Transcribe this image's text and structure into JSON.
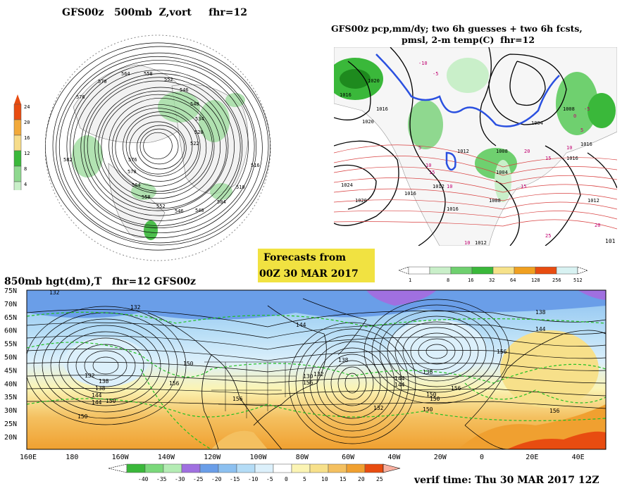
{
  "panel_vort": {
    "title": "GFS00z   500mb  Z,vort     fhr=12",
    "scale_labels": [
      "24",
      "20",
      "16",
      "12",
      "8",
      "4"
    ],
    "scale_colors": [
      "#e84c10",
      "#f2a93a",
      "#f6dc8a",
      "#3ab83a",
      "#8fd88f",
      "#c9efc9",
      "#ffffff"
    ],
    "contour_labels": [
      "576",
      "570",
      "564",
      "558",
      "552",
      "546",
      "540",
      "534",
      "528",
      "522",
      "516",
      "510",
      "504",
      "540",
      "546",
      "552",
      "558",
      "564",
      "570",
      "576",
      "582"
    ]
  },
  "panel_precip": {
    "title_line1": "GFS00z pcp,mm/dy; two 6h guesses + two 6h fcsts,",
    "title_line2": "pmsl, 2-m temp(C)  fhr=12",
    "isobar_labels": [
      "1020",
      "1016",
      "1020",
      "1024",
      "1020",
      "1016",
      "1012",
      "1008",
      "1004",
      "1008",
      "1012",
      "1016",
      "1012",
      "1016",
      "1008",
      "1004",
      "1016",
      "1012",
      "1016"
    ],
    "temp_labels": [
      "5",
      "10",
      "15",
      "10",
      "15",
      "20",
      "-5",
      "0",
      "5",
      "10",
      "15",
      "20",
      "25",
      "10",
      "-10",
      "-5"
    ],
    "corner_label": "101"
  },
  "forecast_box": {
    "line1": "Forecasts from",
    "line2": "00Z 30 MAR 2017",
    "bg_color": "#f1e241"
  },
  "precip_scale": {
    "labels": [
      "1",
      "8",
      "16",
      "32",
      "64",
      "128",
      "256",
      "512"
    ],
    "colors": [
      "#ffffff",
      "#c9efc9",
      "#6fd06f",
      "#3ab83a",
      "#f6e28a",
      "#f0a020",
      "#e84c10",
      "#d8f2f2"
    ]
  },
  "panel_850": {
    "title": "850mb hgt(dm),T   fhr=12 GFS00z",
    "y_ticks": [
      "75N",
      "70N",
      "65N",
      "60N",
      "55N",
      "50N",
      "45N",
      "40N",
      "35N",
      "30N",
      "25N",
      "20N"
    ],
    "x_ticks": [
      "160E",
      "180",
      "160W",
      "140W",
      "120W",
      "100W",
      "80W",
      "60W",
      "40W",
      "20W",
      "0",
      "20E",
      "40E"
    ],
    "height_labels": [
      "132",
      "132",
      "144",
      "138",
      "144",
      "150",
      "156",
      "138",
      "144",
      "150",
      "130",
      "132",
      "138",
      "144",
      "150",
      "156",
      "132",
      "138",
      "144",
      "150",
      "156",
      "150",
      "156",
      "132",
      "138",
      "144",
      "150",
      "156",
      "156"
    ]
  },
  "temp_scale": {
    "labels": [
      "-40",
      "-35",
      "-30",
      "-25",
      "-20",
      "-15",
      "-10",
      "-5",
      "0",
      "5",
      "10",
      "15",
      "20",
      "25"
    ],
    "colors": [
      "#3ab83a",
      "#7ad87a",
      "#b4ecb4",
      "#a070e0",
      "#6a9ee8",
      "#8cc0f0",
      "#b4dcf6",
      "#dcf0fb",
      "#ffffff",
      "#fbf4b4",
      "#f7e08a",
      "#f4c060",
      "#f0a030",
      "#e84c10",
      "#f8b0a0"
    ]
  },
  "footer": {
    "verif_time": "verif time: Thu 30 MAR 2017 12Z"
  }
}
